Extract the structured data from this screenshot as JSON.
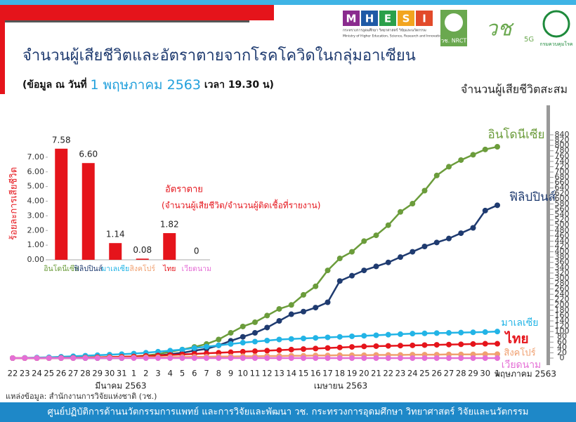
{
  "header": {
    "title": "จำนวนผู้เสียชีวิตและอัตราตายจากโรคโควิดในกลุ่มอาเซียน",
    "subtitle_prefix": "(ข้อมูล ณ วันที่",
    "subtitle_date": "1 พฤษภาคม 2563",
    "subtitle_suffix": "เวลา 19.30 น)"
  },
  "logos": {
    "mhesi_letters": [
      "M",
      "H",
      "E",
      "S",
      "I"
    ],
    "mhesi_th": "กระทรวงการอุดมศึกษา วิทยาศาสตร์ วิจัยและนวัตกรรม",
    "mhesi_en": "Ministry of Higher Education, Science, Research and Innovation",
    "nrct": "วช. NRCT",
    "vch": "วช",
    "fiveg": "5G",
    "ddc": "กรมควบคุมโรค"
  },
  "source": "แหล่งข้อมูล: สำนักงานการวิจัยแห่งชาติ (วช.)",
  "footer": "ศูนย์ปฏิบัติการด้านนวัตกรรมการแพทย์ และการวิจัยและพัฒนา วช.   กระทรวงการอุดมศึกษา วิทยาศาสตร์ วิจัยและนวัตกรรม",
  "chart_data": [
    {
      "type": "line",
      "y_label": "จำนวนผู้เสียชีวิตสะสม",
      "categories": [
        "22",
        "23",
        "24",
        "25",
        "26",
        "27",
        "28",
        "29",
        "30",
        "31",
        "1",
        "2",
        "3",
        "4",
        "5",
        "6",
        "7",
        "8",
        "9",
        "10",
        "11",
        "12",
        "13",
        "14",
        "15",
        "16",
        "17",
        "18",
        "19",
        "20",
        "21",
        "22",
        "23",
        "24",
        "25",
        "26",
        "27",
        "28",
        "29",
        "30",
        "1"
      ],
      "months": [
        "มีนาคม 2563",
        "เมษายน 2563",
        "พฤษภาคม 2563"
      ],
      "ylim": [
        0,
        840
      ],
      "yticks": [
        0,
        20,
        40,
        60,
        80,
        100,
        120,
        140,
        160,
        180,
        200,
        220,
        240,
        260,
        280,
        300,
        320,
        340,
        360,
        380,
        400,
        420,
        440,
        460,
        480,
        500,
        520,
        540,
        560,
        580,
        600,
        620,
        640,
        660,
        680,
        700,
        720,
        740,
        760,
        780,
        800,
        820,
        840
      ],
      "series": [
        {
          "name": "อินโดนีเซีย",
          "color": "#6b9c3b",
          "values": [
            0,
            0,
            0,
            0,
            0,
            1,
            2,
            3,
            4,
            5,
            6,
            10,
            15,
            24,
            32,
            42,
            53,
            70,
            95,
            119,
            135,
            160,
            185,
            200,
            238,
            270,
            330,
            375,
            400,
            440,
            462,
            500,
            550,
            581,
            630,
            687,
            720,
            745,
            765,
            785,
            795
          ]
        },
        {
          "name": "ฟิลิปปินส์",
          "color": "#1f3b70",
          "values": [
            0,
            0,
            0,
            0,
            0,
            0,
            0,
            0,
            0,
            0,
            3,
            6,
            10,
            15,
            20,
            28,
            35,
            48,
            65,
            80,
            95,
            115,
            140,
            165,
            175,
            190,
            210,
            290,
            310,
            330,
            345,
            360,
            380,
            400,
            420,
            435,
            450,
            470,
            490,
            555,
            575
          ]
        },
        {
          "name": "มาเลเซีย",
          "color": "#22b4e6",
          "values": [
            0,
            1,
            2,
            3,
            5,
            7,
            9,
            11,
            13,
            15,
            17,
            20,
            24,
            28,
            32,
            38,
            43,
            48,
            53,
            58,
            62,
            66,
            70,
            72,
            74,
            76,
            78,
            80,
            82,
            84,
            86,
            88,
            90,
            92,
            93,
            94,
            95,
            96,
            97,
            98,
            100
          ]
        },
        {
          "name": "ไทย",
          "color": "#e5141b",
          "values": [
            0,
            0,
            0,
            0,
            1,
            1,
            2,
            3,
            4,
            5,
            6,
            8,
            10,
            12,
            14,
            16,
            18,
            20,
            22,
            24,
            26,
            28,
            30,
            32,
            34,
            36,
            38,
            40,
            42,
            44,
            45,
            46,
            47,
            48,
            49,
            50,
            51,
            52,
            53,
            54,
            54
          ]
        },
        {
          "name": "สิงคโปร์",
          "color": "#f0a070",
          "values": [
            0,
            0,
            0,
            0,
            0,
            0,
            1,
            1,
            2,
            2,
            2,
            3,
            3,
            4,
            4,
            5,
            5,
            6,
            6,
            7,
            7,
            8,
            8,
            9,
            9,
            10,
            10,
            11,
            11,
            11,
            12,
            12,
            12,
            13,
            13,
            13,
            14,
            14,
            14,
            15,
            15
          ]
        },
        {
          "name": "เวียดนาม",
          "color": "#e56fd6",
          "values": [
            0,
            0,
            0,
            0,
            0,
            0,
            0,
            0,
            0,
            0,
            0,
            0,
            0,
            0,
            0,
            0,
            0,
            0,
            0,
            0,
            0,
            0,
            0,
            0,
            0,
            0,
            0,
            0,
            0,
            0,
            0,
            0,
            0,
            0,
            0,
            0,
            0,
            0,
            0,
            0,
            0
          ]
        }
      ]
    },
    {
      "type": "bar",
      "y_label": "ร้อยละการเสียชีวิต",
      "annotation_title": "อัตราตาย",
      "annotation": "(จำนวนผู้เสียชีวิต/จำนวนผู้ติดเชื้อที่รายงาน)",
      "categories": [
        "อินโดนีเซีย",
        "ฟิลิปปินส์",
        "มาเลเซีย",
        "สิงคโปร์",
        "ไทย",
        "เวียดนาม"
      ],
      "category_colors": [
        "#6b9c3b",
        "#1f3b70",
        "#22b4e6",
        "#f0a070",
        "#e5141b",
        "#e56fd6"
      ],
      "values": [
        7.58,
        6.6,
        1.14,
        0.08,
        1.82,
        0
      ],
      "value_labels": [
        "7.58",
        "6.60",
        "1.14",
        "0.08",
        "1.82",
        "0"
      ],
      "color": "#e5141b",
      "ylim": [
        0,
        8
      ],
      "yticks": [
        {
          "value": 0,
          "label": "0.00"
        },
        {
          "value": 1,
          "label": "1.00"
        },
        {
          "value": 2,
          "label": "2.00"
        },
        {
          "value": 3,
          "label": "3.00"
        },
        {
          "value": 4,
          "label": "4.00"
        },
        {
          "value": 5,
          "label": "5.00"
        },
        {
          "value": 6,
          "label": "6.00"
        },
        {
          "value": 7,
          "label": "7.00"
        }
      ]
    }
  ]
}
